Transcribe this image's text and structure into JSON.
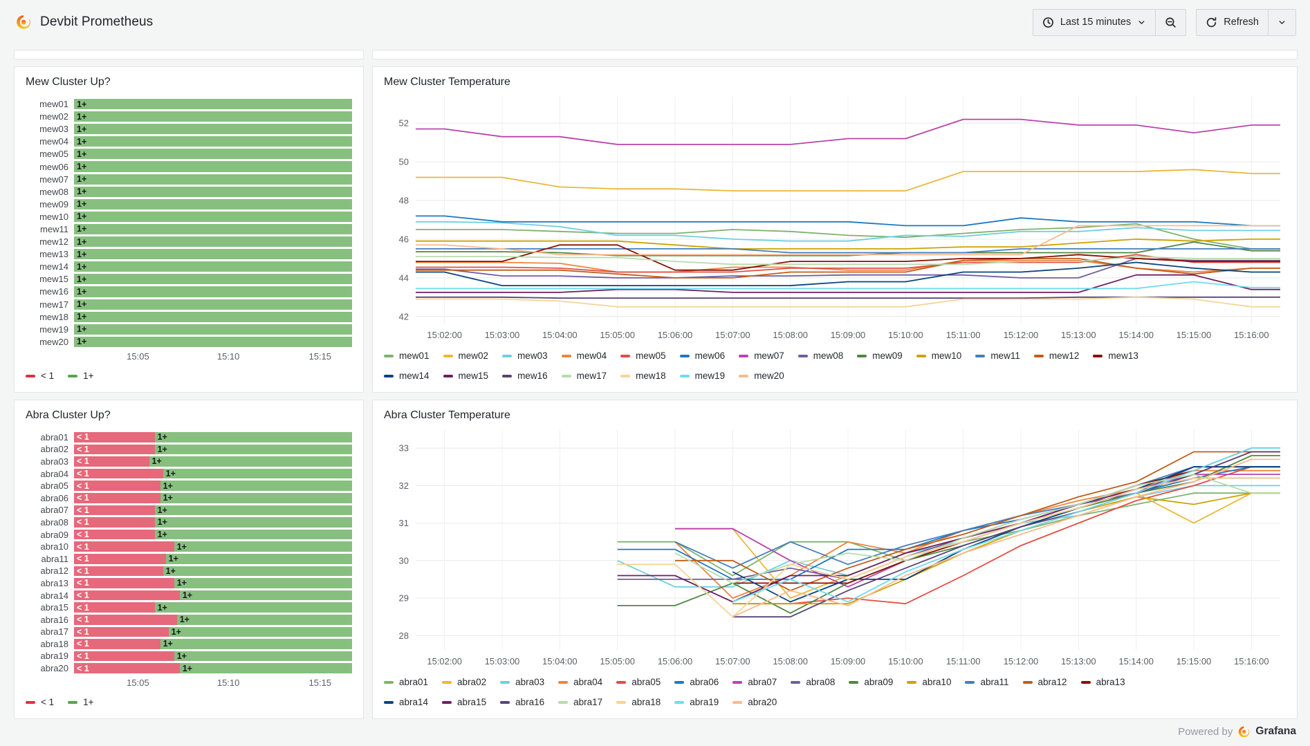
{
  "header": {
    "title": "Devbit Prometheus",
    "time_range_label": "Last 15 minutes",
    "refresh_label": "Refresh"
  },
  "footer": {
    "powered_by": "Powered by",
    "brand": "Grafana"
  },
  "colors": {
    "up_bar": "#87BF7F",
    "down_bar": "#E5697B",
    "up_legend": "#56A64B",
    "down_legend": "#E02F44",
    "grafana_orange": "#F2561D",
    "grafana_yellow": "#FBCA0A"
  },
  "panels": {
    "mew_up": {
      "title": "Mew Cluster Up?"
    },
    "mew_temp": {
      "title": "Mew Cluster Temperature"
    },
    "abra_up": {
      "title": "Abra Cluster Up?"
    },
    "abra_temp": {
      "title": "Abra Cluster Temperature"
    }
  },
  "chart_data": [
    {
      "type": "bar",
      "panel": "mew_up",
      "title": "Mew Cluster Up?",
      "categories": [
        "mew01",
        "mew02",
        "mew03",
        "mew04",
        "mew05",
        "mew06",
        "mew07",
        "mew08",
        "mew09",
        "mew10",
        "mew11",
        "mew12",
        "mew13",
        "mew14",
        "mew15",
        "mew16",
        "mew17",
        "mew18",
        "mew19",
        "mew20"
      ],
      "down_pct": [
        0,
        0,
        0,
        0,
        0,
        0,
        0,
        0,
        0,
        0,
        0,
        0,
        0,
        0,
        0,
        0,
        0,
        0,
        0,
        0
      ],
      "down_label": "< 1",
      "up_label": "1+",
      "x_ticks": [
        {
          "label": "15:05",
          "pos": 0.23
        },
        {
          "label": "15:10",
          "pos": 0.555
        },
        {
          "label": "15:15",
          "pos": 0.885
        }
      ],
      "legend": [
        {
          "label": "< 1",
          "color": "#E02F44"
        },
        {
          "label": "1+",
          "color": "#56A64B"
        }
      ],
      "colors": {
        "down": "#E5697B",
        "up": "#87BF7F"
      }
    },
    {
      "type": "line",
      "panel": "mew_temp",
      "title": "Mew Cluster Temperature",
      "x": [
        "15:02:00",
        "15:03:00",
        "15:04:00",
        "15:05:00",
        "15:06:00",
        "15:07:00",
        "15:08:00",
        "15:09:00",
        "15:10:00",
        "15:11:00",
        "15:12:00",
        "15:13:00",
        "15:14:00",
        "15:15:00",
        "15:16:00"
      ],
      "ylim": [
        41.6,
        53.4
      ],
      "yticks": [
        42,
        44,
        46,
        48,
        50,
        52
      ],
      "legend_rows": [
        13,
        7
      ],
      "series": [
        {
          "name": "mew01",
          "color": "#7EB26D",
          "values": [
            46.5,
            46.5,
            46.4,
            46.3,
            46.3,
            46.5,
            46.4,
            46.2,
            46.1,
            46.3,
            46.5,
            46.6,
            46.8,
            46.0,
            45.5
          ]
        },
        {
          "name": "mew02",
          "color": "#EAB839",
          "values": [
            49.2,
            49.2,
            48.7,
            48.6,
            48.6,
            48.5,
            48.5,
            48.5,
            48.5,
            49.5,
            49.5,
            49.5,
            49.5,
            49.6,
            49.4
          ]
        },
        {
          "name": "mew03",
          "color": "#6ED0E0",
          "values": [
            46.9,
            46.85,
            46.65,
            46.2,
            46.2,
            46.0,
            45.9,
            45.9,
            46.2,
            46.15,
            46.4,
            46.4,
            46.6,
            46.45,
            46.45
          ]
        },
        {
          "name": "mew04",
          "color": "#EF843C",
          "values": [
            44.8,
            44.8,
            44.75,
            44.3,
            44.3,
            44.55,
            44.55,
            44.4,
            44.4,
            44.9,
            44.9,
            44.9,
            44.5,
            44.3,
            44.5
          ]
        },
        {
          "name": "mew05",
          "color": "#E24D42",
          "values": [
            44.55,
            44.55,
            44.5,
            44.3,
            44.3,
            44.3,
            44.5,
            44.5,
            44.5,
            44.8,
            44.8,
            44.8,
            45.2,
            44.8,
            44.8
          ]
        },
        {
          "name": "mew06",
          "color": "#1F78C1",
          "values": [
            47.2,
            46.9,
            46.9,
            46.9,
            46.9,
            46.9,
            46.9,
            46.9,
            46.7,
            46.7,
            47.1,
            46.9,
            46.9,
            46.9,
            46.7
          ]
        },
        {
          "name": "mew07",
          "color": "#BA43A9",
          "values": [
            51.7,
            51.3,
            51.3,
            50.9,
            50.9,
            50.9,
            50.9,
            51.2,
            51.2,
            52.2,
            52.2,
            51.9,
            51.9,
            51.5,
            51.9
          ]
        },
        {
          "name": "mew08",
          "color": "#705DA0",
          "values": [
            44.45,
            44.1,
            44.1,
            44.0,
            44.0,
            44.1,
            44.1,
            44.15,
            44.15,
            44.15,
            44.0,
            44.0,
            45.0,
            44.9,
            44.9
          ]
        },
        {
          "name": "mew09",
          "color": "#508642",
          "values": [
            45.35,
            45.35,
            45.3,
            45.15,
            45.15,
            45.15,
            45.15,
            45.15,
            45.3,
            45.3,
            45.3,
            45.3,
            45.3,
            45.85,
            45.4
          ]
        },
        {
          "name": "mew10",
          "color": "#CCA300",
          "values": [
            45.9,
            45.9,
            45.9,
            45.9,
            45.7,
            45.5,
            45.5,
            45.5,
            45.5,
            45.6,
            45.6,
            45.8,
            46.0,
            45.9,
            46.0
          ]
        },
        {
          "name": "mew11",
          "color": "#447EBC",
          "values": [
            45.5,
            45.5,
            45.5,
            45.5,
            45.5,
            45.5,
            45.3,
            45.3,
            45.3,
            45.3,
            45.5,
            45.5,
            45.5,
            45.5,
            45.5
          ]
        },
        {
          "name": "mew12",
          "color": "#C15C17",
          "values": [
            44.4,
            44.4,
            44.4,
            44.2,
            44.0,
            44.0,
            44.3,
            44.3,
            44.3,
            44.9,
            45.0,
            45.0,
            44.5,
            44.2,
            44.5
          ]
        },
        {
          "name": "mew13",
          "color": "#890F02",
          "values": [
            44.85,
            44.85,
            45.7,
            45.7,
            44.4,
            44.4,
            44.85,
            44.85,
            44.85,
            45.0,
            45.0,
            45.2,
            45.0,
            44.85,
            44.85
          ]
        },
        {
          "name": "mew14",
          "color": "#0A437C",
          "values": [
            44.3,
            43.6,
            43.6,
            43.6,
            43.6,
            43.6,
            43.6,
            43.8,
            43.8,
            44.3,
            44.3,
            44.5,
            44.8,
            44.5,
            44.3
          ]
        },
        {
          "name": "mew15",
          "color": "#6D1F62",
          "values": [
            43.25,
            43.25,
            43.25,
            43.4,
            43.4,
            43.25,
            43.25,
            43.25,
            43.25,
            43.25,
            43.25,
            43.25,
            44.15,
            44.15,
            43.4
          ]
        },
        {
          "name": "mew16",
          "color": "#584477",
          "values": [
            43.0,
            43.0,
            42.95,
            42.95,
            42.95,
            42.95,
            42.95,
            42.95,
            42.95,
            42.95,
            42.95,
            43.0,
            43.0,
            43.0,
            43.0
          ]
        },
        {
          "name": "mew17",
          "color": "#B7DBAB",
          "values": [
            45.1,
            45.1,
            45.05,
            45.05,
            44.85,
            44.7,
            44.7,
            44.7,
            44.7,
            44.7,
            44.85,
            44.85,
            45.1,
            45.0,
            45.0
          ]
        },
        {
          "name": "mew18",
          "color": "#F4D598",
          "values": [
            42.9,
            42.9,
            42.8,
            42.5,
            42.5,
            42.5,
            42.5,
            42.5,
            42.5,
            42.9,
            42.9,
            42.9,
            43.0,
            42.9,
            42.5
          ]
        },
        {
          "name": "mew19",
          "color": "#70DBED",
          "values": [
            43.45,
            43.45,
            43.45,
            43.45,
            43.45,
            43.45,
            43.45,
            43.45,
            43.45,
            43.45,
            43.45,
            43.45,
            43.45,
            43.8,
            43.5
          ]
        },
        {
          "name": "mew20",
          "color": "#F9BA8F",
          "values": [
            45.7,
            45.5,
            45.2,
            45.2,
            45.2,
            45.2,
            45.2,
            45.2,
            45.2,
            45.2,
            45.2,
            46.7,
            46.7,
            46.7,
            46.7
          ]
        }
      ]
    },
    {
      "type": "bar",
      "panel": "abra_up",
      "title": "Abra Cluster Up?",
      "categories": [
        "abra01",
        "abra02",
        "abra03",
        "abra04",
        "abra05",
        "abra06",
        "abra07",
        "abra08",
        "abra09",
        "abra10",
        "abra11",
        "abra12",
        "abra13",
        "abra14",
        "abra15",
        "abra16",
        "abra17",
        "abra18",
        "abra19",
        "abra20"
      ],
      "down_pct": [
        29,
        29,
        27,
        32,
        31,
        31,
        29,
        29,
        29,
        36,
        33,
        32,
        36,
        38,
        29,
        37,
        34,
        31,
        36,
        38
      ],
      "down_label": "< 1",
      "up_label": "1+",
      "x_ticks": [
        {
          "label": "15:05",
          "pos": 0.23
        },
        {
          "label": "15:10",
          "pos": 0.555
        },
        {
          "label": "15:15",
          "pos": 0.885
        }
      ],
      "legend": [
        {
          "label": "< 1",
          "color": "#E02F44"
        },
        {
          "label": "1+",
          "color": "#56A64B"
        }
      ],
      "colors": {
        "down": "#E5697B",
        "up": "#87BF7F"
      }
    },
    {
      "type": "line",
      "panel": "abra_temp",
      "title": "Abra Cluster Temperature",
      "x": [
        "15:02:00",
        "15:03:00",
        "15:04:00",
        "15:05:00",
        "15:06:00",
        "15:07:00",
        "15:08:00",
        "15:09:00",
        "15:10:00",
        "15:11:00",
        "15:12:00",
        "15:13:00",
        "15:14:00",
        "15:15:00",
        "15:16:00"
      ],
      "ylim": [
        27.6,
        33.5
      ],
      "yticks": [
        28,
        29,
        30,
        31,
        32,
        33
      ],
      "legend_rows": [
        13,
        7
      ],
      "series": [
        {
          "name": "abra01",
          "color": "#7EB26D",
          "values": [
            null,
            null,
            null,
            30.5,
            30.5,
            29.6,
            30.5,
            30.5,
            30.0,
            30.5,
            30.8,
            31.2,
            31.5,
            31.8,
            31.8
          ]
        },
        {
          "name": "abra02",
          "color": "#EAB839",
          "values": [
            null,
            null,
            null,
            null,
            30.85,
            30.85,
            29.0,
            29.6,
            30.2,
            30.6,
            31.0,
            31.4,
            31.8,
            31.0,
            31.8
          ]
        },
        {
          "name": "abra03",
          "color": "#6ED0E0",
          "values": [
            null,
            null,
            null,
            30.0,
            29.3,
            29.3,
            30.0,
            29.6,
            30.2,
            30.5,
            31.0,
            31.2,
            31.7,
            32.0,
            32.0
          ]
        },
        {
          "name": "abra04",
          "color": "#EF843C",
          "values": [
            null,
            null,
            null,
            null,
            30.5,
            29.0,
            29.6,
            30.5,
            30.2,
            30.8,
            31.2,
            31.6,
            31.9,
            32.4,
            32.4
          ]
        },
        {
          "name": "abra05",
          "color": "#E24D42",
          "values": [
            null,
            null,
            null,
            null,
            null,
            28.85,
            28.85,
            29.0,
            28.85,
            29.6,
            30.4,
            31.0,
            31.6,
            32.0,
            32.5
          ]
        },
        {
          "name": "abra06",
          "color": "#1F78C1",
          "values": [
            null,
            null,
            null,
            30.3,
            30.3,
            29.5,
            29.5,
            30.3,
            30.3,
            30.8,
            31.1,
            31.5,
            31.8,
            32.2,
            32.5
          ]
        },
        {
          "name": "abra07",
          "color": "#BA43A9",
          "values": [
            null,
            null,
            null,
            null,
            30.85,
            30.85,
            30.0,
            29.3,
            30.0,
            30.5,
            31.0,
            31.4,
            31.9,
            32.3,
            32.3
          ]
        },
        {
          "name": "abra08",
          "color": "#705DA0",
          "values": [
            null,
            null,
            null,
            29.5,
            29.5,
            29.5,
            29.8,
            29.5,
            30.1,
            30.6,
            31.1,
            31.5,
            31.8,
            32.5,
            32.5
          ]
        },
        {
          "name": "abra09",
          "color": "#508642",
          "values": [
            null,
            null,
            null,
            28.8,
            28.8,
            29.4,
            28.6,
            29.4,
            30.0,
            30.4,
            30.9,
            31.4,
            31.8,
            32.1,
            32.8
          ]
        },
        {
          "name": "abra10",
          "color": "#CCA300",
          "values": [
            null,
            null,
            null,
            null,
            null,
            28.85,
            28.85,
            28.85,
            29.5,
            30.2,
            30.8,
            31.3,
            31.7,
            31.5,
            31.8
          ]
        },
        {
          "name": "abra11",
          "color": "#447EBC",
          "values": [
            null,
            null,
            null,
            null,
            30.5,
            29.8,
            30.5,
            29.9,
            30.4,
            30.8,
            31.2,
            31.5,
            32.0,
            32.5,
            32.5
          ]
        },
        {
          "name": "abra12",
          "color": "#C15C17",
          "values": [
            null,
            null,
            null,
            null,
            30.0,
            30.0,
            29.2,
            29.8,
            30.3,
            30.7,
            31.2,
            31.7,
            32.1,
            32.9,
            32.9
          ]
        },
        {
          "name": "abra13",
          "color": "#890F02",
          "values": [
            null,
            null,
            null,
            null,
            null,
            29.4,
            29.4,
            29.4,
            30.0,
            30.5,
            31.0,
            31.5,
            32.0,
            32.4,
            33.0
          ]
        },
        {
          "name": "abra14",
          "color": "#0A437C",
          "values": [
            null,
            null,
            null,
            null,
            null,
            29.7,
            28.9,
            29.5,
            29.5,
            30.3,
            30.9,
            31.4,
            31.9,
            32.5,
            32.5
          ]
        },
        {
          "name": "abra15",
          "color": "#6D1F62",
          "values": [
            null,
            null,
            null,
            29.6,
            29.6,
            28.9,
            29.6,
            29.6,
            30.2,
            30.6,
            31.0,
            31.5,
            31.9,
            32.2,
            32.2
          ]
        },
        {
          "name": "abra16",
          "color": "#584477",
          "values": [
            null,
            null,
            null,
            null,
            null,
            28.5,
            28.5,
            29.2,
            29.8,
            30.4,
            30.9,
            31.3,
            31.8,
            32.3,
            32.9
          ]
        },
        {
          "name": "abra17",
          "color": "#B7DBAB",
          "values": [
            null,
            null,
            null,
            null,
            30.2,
            29.4,
            29.9,
            30.2,
            30.0,
            30.6,
            31.1,
            31.5,
            32.0,
            32.3,
            31.8
          ]
        },
        {
          "name": "abra18",
          "color": "#F4D598",
          "values": [
            null,
            null,
            null,
            29.9,
            29.9,
            28.5,
            29.9,
            29.5,
            30.1,
            30.5,
            31.0,
            31.4,
            31.9,
            32.2,
            32.2
          ]
        },
        {
          "name": "abra19",
          "color": "#70DBED",
          "values": [
            null,
            null,
            null,
            null,
            null,
            28.9,
            29.5,
            28.9,
            29.7,
            30.3,
            30.8,
            31.3,
            31.8,
            32.4,
            33.0
          ]
        },
        {
          "name": "abra20",
          "color": "#F9BA8F",
          "values": [
            null,
            null,
            null,
            null,
            null,
            28.5,
            29.2,
            28.8,
            29.6,
            30.2,
            30.7,
            31.2,
            31.7,
            32.1,
            32.7
          ]
        }
      ]
    }
  ]
}
